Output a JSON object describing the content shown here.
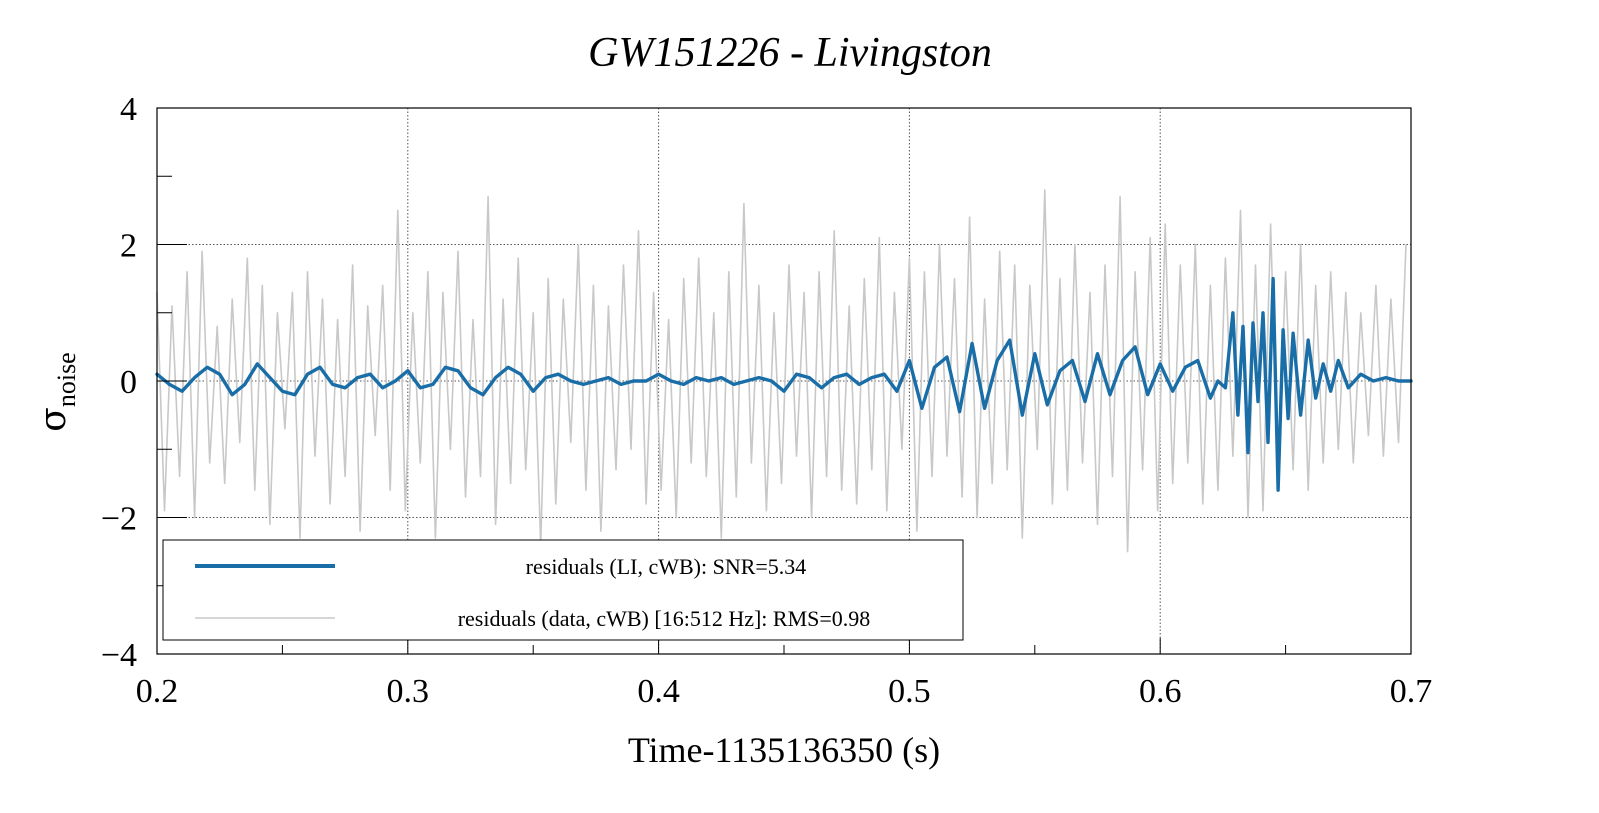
{
  "chart_data": {
    "type": "line",
    "title": "GW151226 - Livingston",
    "xlabel": "Time-1135136350 (s)",
    "ylabel": "σ",
    "ylabel_sub": "noise",
    "xlim": [
      0.2,
      0.7
    ],
    "ylim": [
      -4,
      4
    ],
    "x_major_ticks": [
      0.2,
      0.3,
      0.4,
      0.5,
      0.6,
      0.7
    ],
    "x_tick_labels": [
      "0.2",
      "0.3",
      "0.4",
      "0.5",
      "0.6",
      "0.7"
    ],
    "y_major_ticks": [
      -4,
      -2,
      0,
      2,
      4
    ],
    "y_tick_labels": [
      "−4",
      "−2",
      "0",
      "2",
      "4"
    ],
    "grid": true,
    "legend_position": "bottom-left",
    "series": [
      {
        "name": "residuals (LI, cWB): SNR=5.34",
        "color": "#1a6ea8",
        "x": [
          0.2,
          0.205,
          0.21,
          0.215,
          0.22,
          0.225,
          0.23,
          0.235,
          0.24,
          0.245,
          0.25,
          0.255,
          0.26,
          0.265,
          0.27,
          0.275,
          0.28,
          0.285,
          0.29,
          0.295,
          0.3,
          0.305,
          0.31,
          0.315,
          0.32,
          0.325,
          0.33,
          0.335,
          0.34,
          0.345,
          0.35,
          0.355,
          0.36,
          0.365,
          0.37,
          0.375,
          0.38,
          0.385,
          0.39,
          0.395,
          0.4,
          0.405,
          0.41,
          0.415,
          0.42,
          0.425,
          0.43,
          0.435,
          0.44,
          0.445,
          0.45,
          0.455,
          0.46,
          0.465,
          0.47,
          0.475,
          0.48,
          0.485,
          0.49,
          0.495,
          0.5,
          0.505,
          0.51,
          0.515,
          0.52,
          0.525,
          0.53,
          0.535,
          0.54,
          0.545,
          0.55,
          0.555,
          0.56,
          0.565,
          0.57,
          0.575,
          0.58,
          0.585,
          0.59,
          0.595,
          0.6,
          0.605,
          0.61,
          0.615,
          0.62,
          0.623,
          0.626,
          0.629,
          0.631,
          0.633,
          0.635,
          0.637,
          0.639,
          0.641,
          0.643,
          0.645,
          0.647,
          0.649,
          0.651,
          0.653,
          0.656,
          0.659,
          0.662,
          0.665,
          0.668,
          0.671,
          0.675,
          0.68,
          0.685,
          0.69,
          0.695,
          0.7
        ],
        "y": [
          0.1,
          -0.05,
          -0.15,
          0.05,
          0.2,
          0.1,
          -0.2,
          -0.05,
          0.25,
          0.05,
          -0.15,
          -0.2,
          0.1,
          0.2,
          -0.05,
          -0.1,
          0.05,
          0.1,
          -0.1,
          0.0,
          0.15,
          -0.1,
          -0.05,
          0.2,
          0.15,
          -0.1,
          -0.2,
          0.05,
          0.2,
          0.1,
          -0.15,
          0.05,
          0.1,
          0.0,
          -0.05,
          0.0,
          0.05,
          -0.05,
          0.0,
          0.0,
          0.1,
          0.0,
          -0.05,
          0.05,
          0.0,
          0.05,
          -0.05,
          0.0,
          0.05,
          0.0,
          -0.15,
          0.1,
          0.05,
          -0.1,
          0.05,
          0.1,
          -0.05,
          0.05,
          0.1,
          -0.15,
          0.3,
          -0.4,
          0.2,
          0.35,
          -0.45,
          0.55,
          -0.4,
          0.3,
          0.6,
          -0.5,
          0.4,
          -0.35,
          0.15,
          0.3,
          -0.3,
          0.4,
          -0.2,
          0.3,
          0.5,
          -0.2,
          0.25,
          -0.15,
          0.2,
          0.3,
          -0.25,
          0.0,
          -0.1,
          1.0,
          -0.5,
          0.8,
          -1.05,
          0.85,
          -0.3,
          1.0,
          -0.9,
          1.5,
          -1.6,
          0.75,
          -0.55,
          0.7,
          -0.5,
          0.6,
          -0.25,
          0.25,
          -0.15,
          0.3,
          -0.1,
          0.1,
          0.0,
          0.05,
          0.0,
          0.0
        ]
      },
      {
        "name": "residuals (data, cWB) [16:512 Hz]: RMS=0.98",
        "color": "#c8c8c8",
        "rms": 0.98,
        "x": [
          0.2,
          0.203,
          0.206,
          0.209,
          0.212,
          0.215,
          0.218,
          0.221,
          0.224,
          0.227,
          0.23,
          0.233,
          0.236,
          0.239,
          0.242,
          0.245,
          0.248,
          0.251,
          0.254,
          0.257,
          0.26,
          0.263,
          0.266,
          0.269,
          0.272,
          0.275,
          0.278,
          0.281,
          0.284,
          0.287,
          0.29,
          0.293,
          0.296,
          0.299,
          0.302,
          0.305,
          0.308,
          0.311,
          0.314,
          0.317,
          0.32,
          0.323,
          0.326,
          0.329,
          0.332,
          0.335,
          0.338,
          0.341,
          0.344,
          0.347,
          0.35,
          0.353,
          0.356,
          0.359,
          0.362,
          0.365,
          0.368,
          0.371,
          0.374,
          0.377,
          0.38,
          0.383,
          0.386,
          0.389,
          0.392,
          0.395,
          0.398,
          0.401,
          0.404,
          0.407,
          0.41,
          0.413,
          0.416,
          0.419,
          0.422,
          0.425,
          0.428,
          0.431,
          0.434,
          0.437,
          0.44,
          0.443,
          0.446,
          0.449,
          0.452,
          0.455,
          0.458,
          0.461,
          0.464,
          0.467,
          0.47,
          0.473,
          0.476,
          0.479,
          0.482,
          0.485,
          0.488,
          0.491,
          0.494,
          0.497,
          0.5,
          0.503,
          0.506,
          0.509,
          0.512,
          0.515,
          0.518,
          0.521,
          0.524,
          0.527,
          0.53,
          0.533,
          0.536,
          0.539,
          0.542,
          0.545,
          0.548,
          0.551,
          0.554,
          0.557,
          0.56,
          0.563,
          0.566,
          0.569,
          0.572,
          0.575,
          0.578,
          0.581,
          0.584,
          0.587,
          0.59,
          0.593,
          0.596,
          0.599,
          0.602,
          0.605,
          0.608,
          0.611,
          0.614,
          0.617,
          0.62,
          0.623,
          0.626,
          0.629,
          0.632,
          0.635,
          0.638,
          0.641,
          0.644,
          0.647,
          0.65,
          0.653,
          0.656,
          0.659,
          0.662,
          0.665,
          0.668,
          0.671,
          0.674,
          0.677,
          0.68,
          0.683,
          0.686,
          0.689,
          0.692,
          0.695,
          0.698
        ],
        "y": [
          1.3,
          -1.9,
          1.1,
          -1.4,
          1.6,
          -2.0,
          1.9,
          -1.2,
          0.8,
          -1.5,
          1.2,
          -0.9,
          1.8,
          -1.6,
          1.4,
          -2.1,
          1.0,
          -0.7,
          1.3,
          -2.3,
          1.6,
          -1.1,
          1.2,
          -1.8,
          0.9,
          -1.4,
          1.7,
          -2.2,
          1.1,
          -0.8,
          1.4,
          -1.6,
          2.5,
          -1.9,
          1.0,
          -1.2,
          1.6,
          -2.3,
          1.3,
          -1.0,
          1.9,
          -1.7,
          0.9,
          -1.4,
          2.7,
          -2.1,
          1.2,
          -1.5,
          1.8,
          -1.3,
          1.0,
          -2.4,
          1.5,
          -1.8,
          1.2,
          -0.9,
          2.0,
          -1.6,
          1.4,
          -2.2,
          1.1,
          -1.3,
          1.7,
          -1.0,
          2.2,
          -1.8,
          1.3,
          -1.6,
          0.9,
          -2.0,
          1.5,
          -1.2,
          1.8,
          -1.4,
          1.0,
          -2.3,
          1.6,
          -1.7,
          2.6,
          -1.2,
          1.4,
          -1.9,
          1.0,
          -1.5,
          1.7,
          -1.1,
          1.3,
          -2.0,
          1.6,
          -1.4,
          2.2,
          -1.6,
          1.1,
          -1.8,
          1.5,
          -1.3,
          2.1,
          -1.9,
          1.3,
          -1.0,
          1.8,
          -2.2,
          1.6,
          -1.4,
          2.0,
          -1.1,
          1.5,
          -1.7,
          2.4,
          -2.0,
          1.2,
          -1.5,
          1.9,
          -1.3,
          1.7,
          -2.3,
          1.4,
          -1.0,
          2.8,
          -1.8,
          1.5,
          -1.6,
          2.0,
          -1.2,
          1.3,
          -2.1,
          1.7,
          -1.4,
          2.7,
          -2.5,
          1.6,
          -1.3,
          2.1,
          -1.9,
          2.3,
          -1.5,
          1.7,
          -1.2,
          2.0,
          -1.8,
          1.4,
          -1.6,
          1.8,
          -1.1,
          2.5,
          -2.0,
          1.7,
          -1.9,
          2.3,
          -1.5,
          1.6,
          -1.3,
          2.0,
          -1.6,
          1.4,
          -1.2,
          1.6,
          -1.0,
          1.3,
          -1.2,
          1.0,
          -0.8,
          1.4,
          -1.1,
          1.2,
          -0.9,
          2.0
        ]
      }
    ]
  }
}
